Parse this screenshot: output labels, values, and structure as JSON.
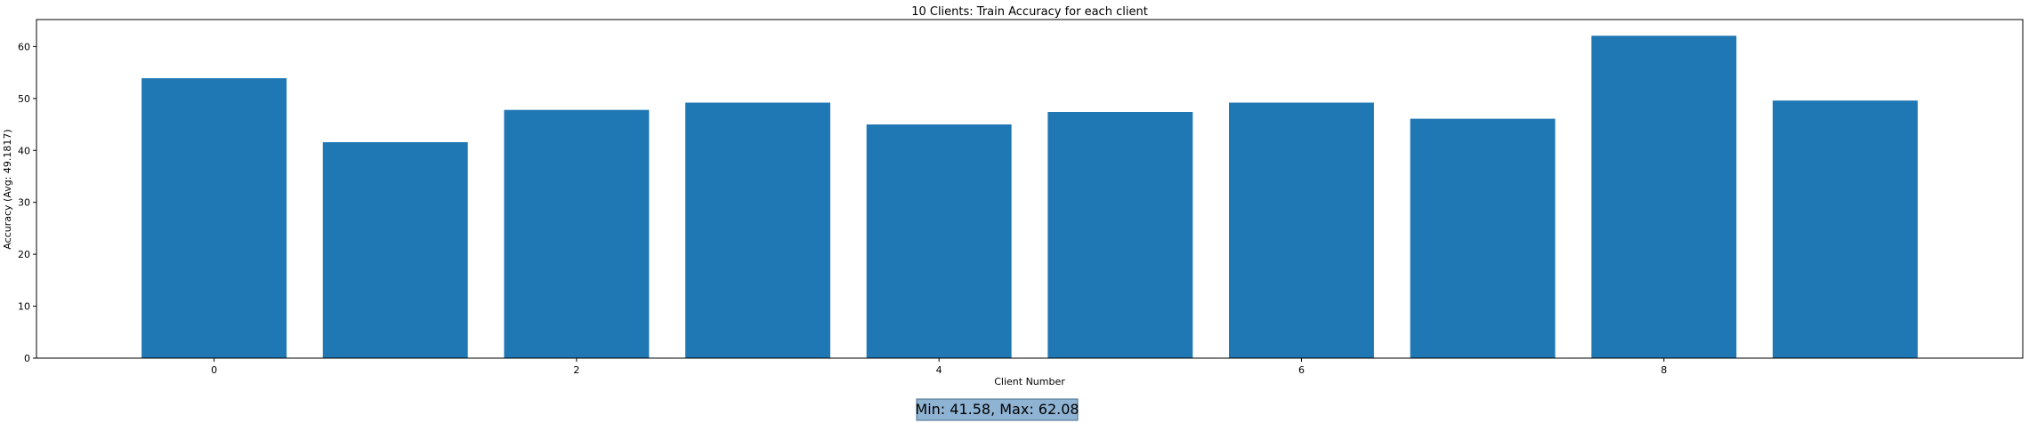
{
  "chart_data": {
    "type": "bar",
    "title": "10 Clients: Train Accuracy for each client",
    "xlabel": "Client Number",
    "ylabel": "Accuracy (Avg: 49.1817)",
    "categories": [
      0,
      1,
      2,
      3,
      4,
      5,
      6,
      7,
      8,
      9
    ],
    "values": [
      53.9,
      41.58,
      47.8,
      49.2,
      45.0,
      47.4,
      49.2,
      46.1,
      62.08,
      49.6
    ],
    "x_ticks": [
      0,
      2,
      4,
      6,
      8
    ],
    "y_ticks": [
      0,
      10,
      20,
      30,
      40,
      50,
      60
    ],
    "xlim": [
      -0.98,
      9.98
    ],
    "ylim": [
      0,
      65.2
    ],
    "bar_color": "#1f77b4",
    "grid": false,
    "annotation": {
      "text": "Min: 41.58, Max: 62.08",
      "background": "#8fb3d3",
      "border": "#4a6d8c"
    }
  }
}
